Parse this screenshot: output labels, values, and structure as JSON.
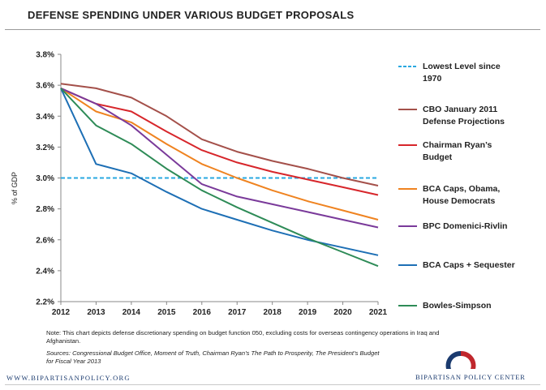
{
  "page": {
    "title": "DEFENSE SPENDING UNDER VARIOUS BUDGET PROPOSALS",
    "note": "Note: This chart depicts defense discretionary spending on budget function 050, excluding costs for overseas contingency operations in Iraq and Afghanistan.",
    "sources": "Sources: Congressional Budget Office, Moment of Truth, Chairman Ryan’s The Path to Prosperity, The President’s Budget for Fiscal Year 2013",
    "website": "WWW.BIPARTISANPOLICY.ORG",
    "org_name": "BIPARTISAN POLICY CENTER",
    "logo_colors": {
      "blue": "#1a3a6e",
      "red": "#c0272d"
    }
  },
  "chart_data": {
    "type": "line",
    "title": "DEFENSE SPENDING UNDER VARIOUS BUDGET PROPOSALS",
    "xlabel": "",
    "ylabel": "% of GDP",
    "x": [
      2012,
      2013,
      2014,
      2015,
      2016,
      2017,
      2018,
      2019,
      2020,
      2021
    ],
    "ylim": [
      2.2,
      3.8
    ],
    "yticks": [
      2.2,
      2.4,
      2.6,
      2.8,
      3.0,
      3.2,
      3.4,
      3.6,
      3.8
    ],
    "ytick_labels": [
      "2.2%",
      "2.4%",
      "2.6%",
      "2.8%",
      "3.0%",
      "3.2%",
      "3.4%",
      "3.6%",
      "3.8%"
    ],
    "grid": false,
    "legend_position": "right",
    "series": [
      {
        "name": "Lowest Level since 1970",
        "style": "dashed",
        "color": "#29a8e0",
        "values": [
          3.0,
          3.0,
          3.0,
          3.0,
          3.0,
          3.0,
          3.0,
          3.0,
          3.0,
          3.0
        ]
      },
      {
        "name": "CBO January 2011 Defense Projections",
        "style": "solid",
        "color": "#a4504a",
        "values": [
          3.61,
          3.58,
          3.52,
          3.4,
          3.25,
          3.17,
          3.11,
          3.06,
          3.0,
          2.95
        ]
      },
      {
        "name": "Chairman Ryan’s Budget",
        "style": "solid",
        "color": "#d7262b",
        "values": [
          3.58,
          3.48,
          3.43,
          3.3,
          3.18,
          3.1,
          3.04,
          2.99,
          2.94,
          2.89
        ]
      },
      {
        "name": "BCA Caps, Obama, House Democrats",
        "style": "solid",
        "color": "#ef8320",
        "values": [
          3.58,
          3.43,
          3.36,
          3.22,
          3.09,
          3.0,
          2.92,
          2.85,
          2.79,
          2.73
        ]
      },
      {
        "name": "BPC Domenici-Rivlin",
        "style": "solid",
        "color": "#7a3a9a",
        "values": [
          3.58,
          3.48,
          3.34,
          3.15,
          2.96,
          2.88,
          2.83,
          2.78,
          2.73,
          2.68
        ]
      },
      {
        "name": "BCA Caps + Sequester",
        "style": "solid",
        "color": "#1d6fb5",
        "values": [
          3.58,
          3.09,
          3.03,
          2.91,
          2.8,
          2.73,
          2.66,
          2.6,
          2.55,
          2.5
        ]
      },
      {
        "name": "Bowles-Simpson",
        "style": "solid",
        "color": "#2e8b57",
        "values": [
          3.58,
          3.34,
          3.22,
          3.06,
          2.92,
          2.81,
          2.71,
          2.61,
          2.52,
          2.43
        ]
      }
    ]
  }
}
